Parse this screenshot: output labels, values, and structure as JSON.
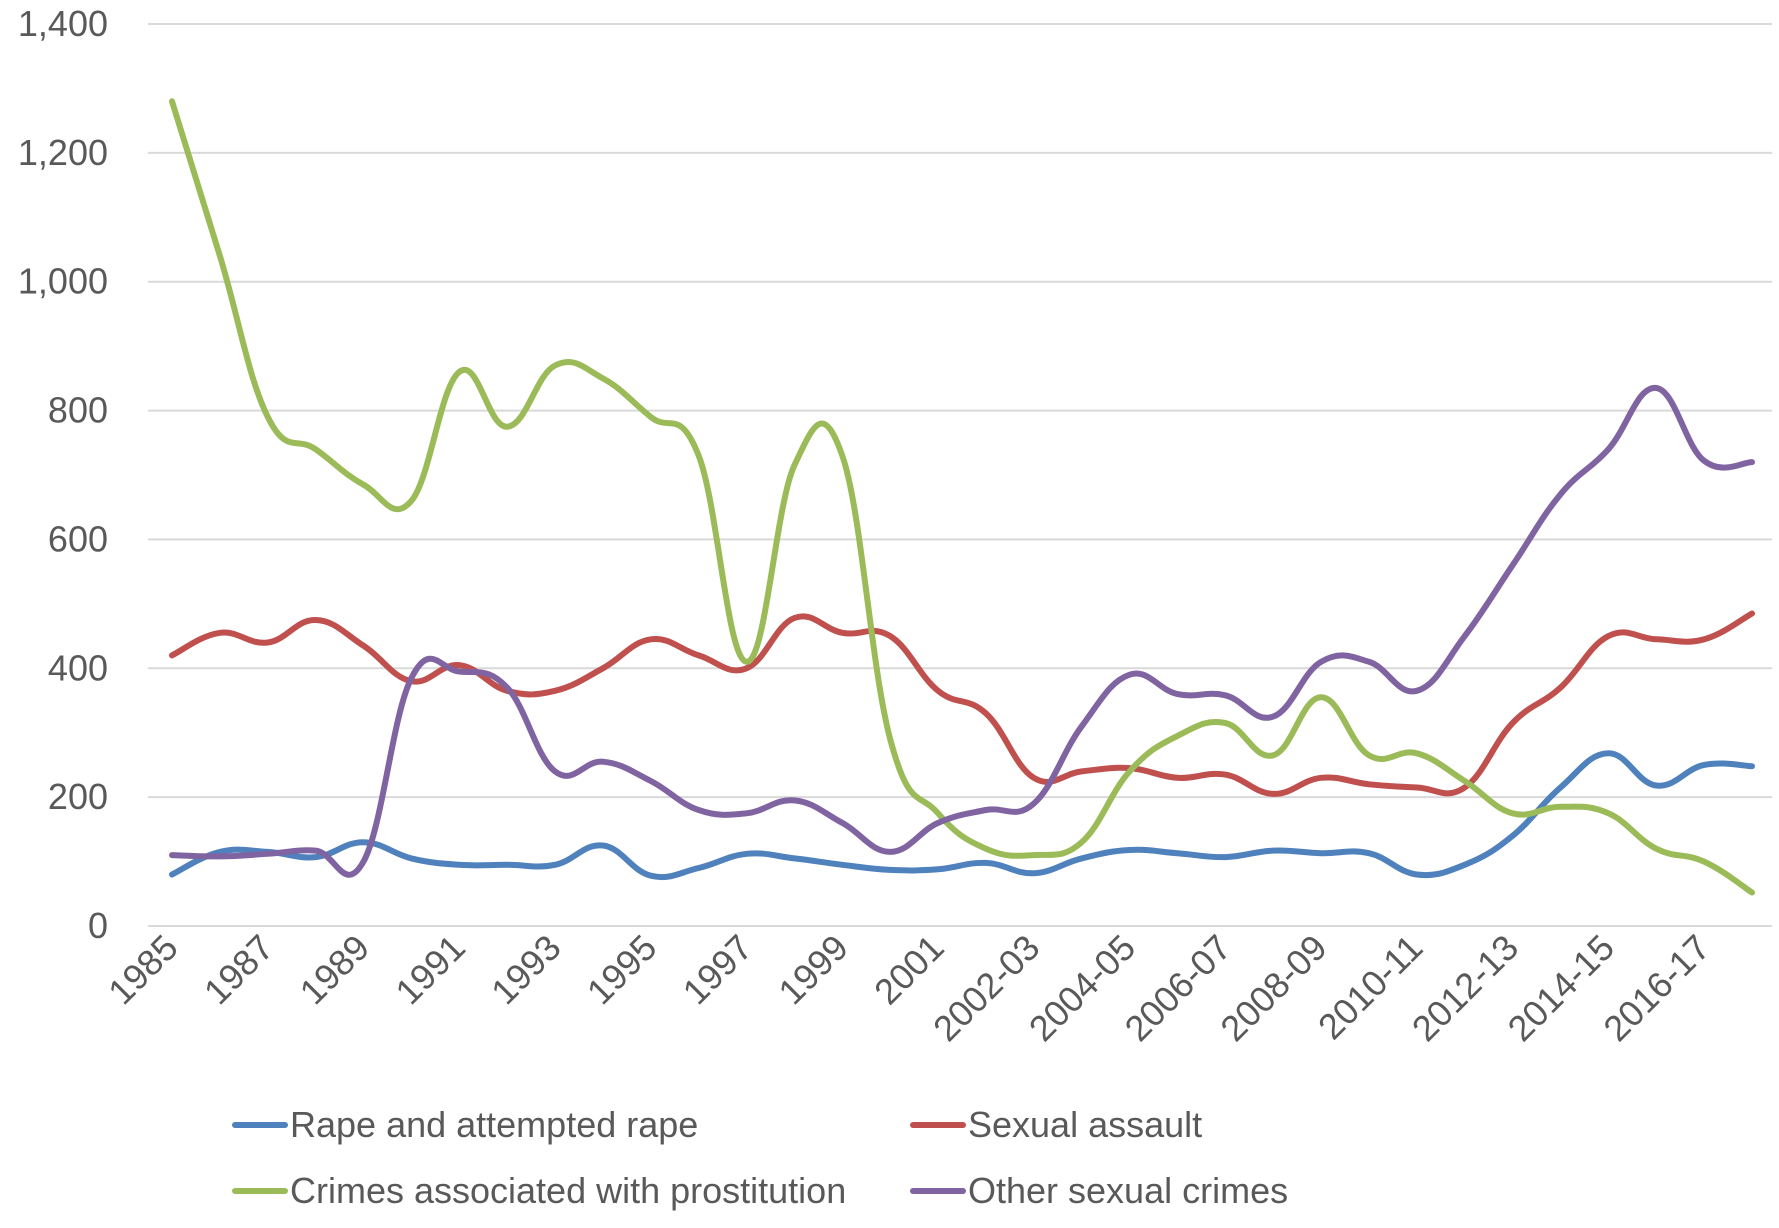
{
  "chart_data": {
    "type": "line",
    "title": "",
    "xlabel": "",
    "ylabel": "",
    "ylim": [
      0,
      1400
    ],
    "yticks": [
      0,
      200,
      400,
      600,
      800,
      1000,
      1200,
      1400
    ],
    "ytick_labels": [
      "0",
      "200",
      "400",
      "600",
      "800",
      "1,000",
      "1,200",
      "1,400"
    ],
    "grid": true,
    "legend_position": "bottom",
    "x": [
      "1985",
      "1986",
      "1987",
      "1988",
      "1989",
      "1990",
      "1991",
      "1992",
      "1993",
      "1994",
      "1995",
      "1996",
      "1997",
      "1998",
      "1999",
      "2000",
      "2001",
      "2002",
      "2002-03",
      "2003-04",
      "2004-05",
      "2005-06",
      "2006-07",
      "2007-08",
      "2008-09",
      "2009-10",
      "2010-11",
      "2011-12",
      "2012-13",
      "2013-14",
      "2014-15",
      "2015-16",
      "2016-17",
      "2017-18"
    ],
    "xtick_labels": [
      "1985",
      "1987",
      "1989",
      "1991",
      "1993",
      "1995",
      "1997",
      "1999",
      "2001",
      "2002-03",
      "2004-05",
      "2006-07",
      "2008-09",
      "2010-11",
      "2012-13",
      "2014-15",
      "2016-17"
    ],
    "series": [
      {
        "name": "Rape and attempted rape",
        "color": "#4f81bd",
        "values": [
          80,
          115,
          115,
          107,
          130,
          105,
          95,
          95,
          95,
          125,
          78,
          90,
          112,
          105,
          95,
          87,
          88,
          98,
          82,
          105,
          118,
          113,
          107,
          117,
          113,
          113,
          80,
          95,
          140,
          215,
          268,
          218,
          250,
          248
        ]
      },
      {
        "name": "Sexual assault",
        "color": "#c0504d",
        "values": [
          420,
          455,
          440,
          475,
          435,
          380,
          405,
          365,
          365,
          400,
          445,
          420,
          400,
          478,
          455,
          450,
          365,
          330,
          230,
          240,
          245,
          230,
          235,
          205,
          230,
          220,
          215,
          215,
          315,
          370,
          450,
          445,
          445,
          485
        ]
      },
      {
        "name": "Crimes associated with prostitution",
        "color": "#9bbb59",
        "values": [
          1280,
          1040,
          790,
          740,
          685,
          660,
          860,
          775,
          870,
          850,
          790,
          730,
          410,
          715,
          730,
          290,
          175,
          120,
          110,
          130,
          240,
          295,
          315,
          265,
          355,
          265,
          268,
          225,
          175,
          185,
          175,
          120,
          100,
          52
        ]
      },
      {
        "name": "Other sexual crimes",
        "color": "#8064a2",
        "values": [
          110,
          108,
          112,
          117,
          100,
          385,
          395,
          370,
          240,
          255,
          225,
          180,
          175,
          195,
          160,
          115,
          160,
          180,
          190,
          310,
          390,
          360,
          358,
          325,
          410,
          410,
          365,
          450,
          560,
          670,
          740,
          835,
          722,
          720
        ]
      }
    ]
  }
}
